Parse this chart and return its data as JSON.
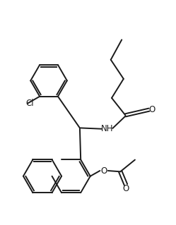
{
  "bg_color": "#ffffff",
  "line_color": "#1a1a1a",
  "text_color": "#1a1a1a",
  "figsize": [
    2.49,
    3.19
  ],
  "dpi": 100,
  "label_Cl": "Cl",
  "label_NH": "NH",
  "label_O_ester": "O",
  "label_O_carbonyl_amide": "O",
  "label_O_carbonyl_acetyl": "O"
}
